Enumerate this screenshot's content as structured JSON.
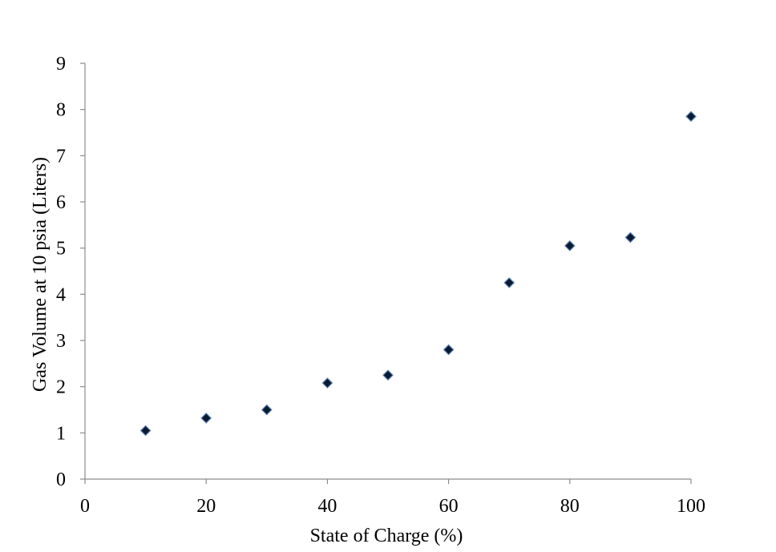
{
  "chart_data": {
    "type": "scatter",
    "title": "",
    "xlabel": "State of Charge (%)",
    "ylabel": "Gas Volume at 10 psia (Liters)",
    "xlim": [
      0,
      100
    ],
    "ylim": [
      0,
      9
    ],
    "x_ticks": [
      "0",
      "20",
      "40",
      "60",
      "80",
      "100"
    ],
    "y_ticks": [
      "0",
      "1",
      "2",
      "3",
      "4",
      "5",
      "6",
      "7",
      "8",
      "9"
    ],
    "grid": false,
    "legend": "none",
    "marker": "diamond",
    "marker_color": "#0a1a33",
    "marker_edge_color": "#5b7fb0",
    "series": [
      {
        "x": [
          10,
          20,
          30,
          40,
          50,
          60,
          70,
          80,
          90,
          100
        ],
        "y": [
          1.05,
          1.32,
          1.5,
          2.08,
          2.25,
          2.8,
          4.25,
          5.05,
          5.23,
          7.85
        ]
      }
    ]
  }
}
